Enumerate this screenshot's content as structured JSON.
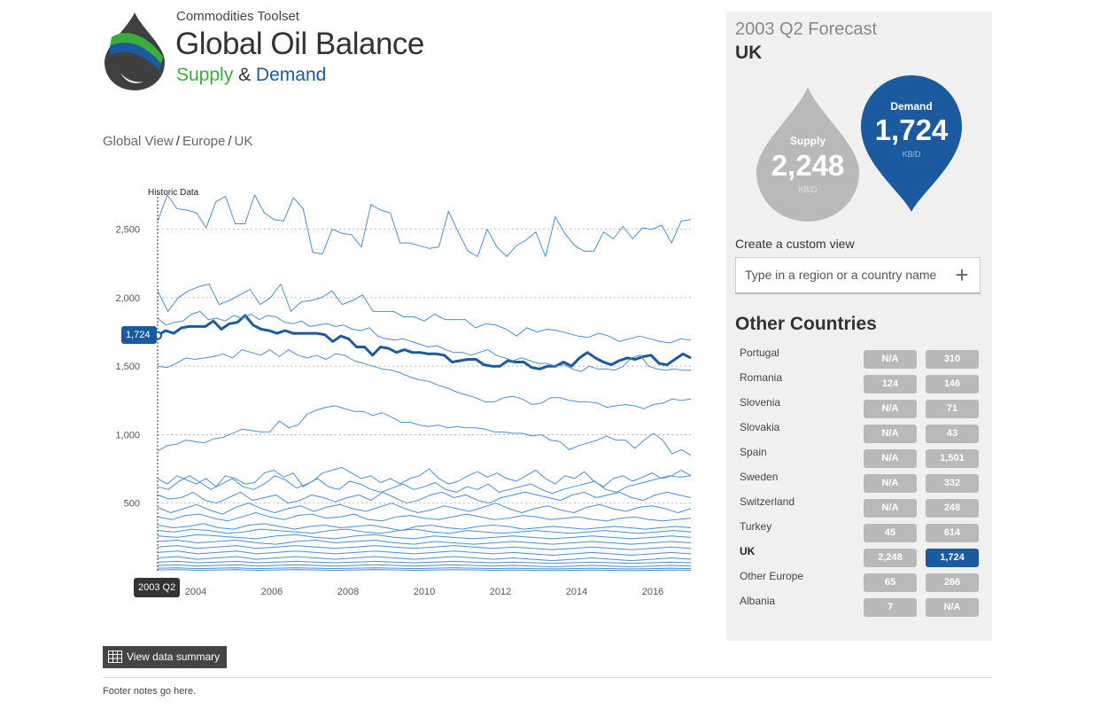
{
  "header": {
    "subtitle": "Commodities Toolset",
    "title": "Global Oil Balance",
    "tag_supply": "Supply",
    "tag_amp": "&",
    "tag_demand": "Demand",
    "logo_icon": "oil-drop-logo-icon"
  },
  "breadcrumb": {
    "items": [
      "Global View",
      "Europe",
      "UK"
    ],
    "separator": "/"
  },
  "chart_data": {
    "type": "line",
    "marker_label": "Historic Data",
    "selected_value_label": "1,724",
    "selected_date_label": "2003 Q2",
    "y_ticks": [
      "500",
      "1,000",
      "1,500",
      "2,000",
      "2,500"
    ],
    "x_ticks": [
      "2004",
      "2006",
      "2008",
      "2010",
      "2012",
      "2014",
      "2016"
    ],
    "ylim": [
      0,
      2750
    ],
    "xlim": [
      2003.0,
      2017.0
    ],
    "grid": true,
    "highlight_color": "#1c5aa0",
    "series_color": "#4a8fd4",
    "series": [
      {
        "values": [
          2560,
          2750,
          2650,
          2640,
          2620,
          2510,
          2700,
          2740,
          2540,
          2540,
          2750,
          2620,
          2570,
          2560,
          2730,
          2650,
          2330,
          2320,
          2500,
          2470,
          2460,
          2370,
          2680,
          2640,
          2620,
          2400,
          2400,
          2380,
          2360,
          2370,
          2630,
          2480,
          2340,
          2300,
          2500,
          2370,
          2300,
          2380,
          2420,
          2480,
          2300,
          2590,
          2470,
          2380,
          2340,
          2340,
          2480,
          2430,
          2520,
          2430,
          2510,
          2500,
          2530,
          2400,
          2560,
          2570
        ]
      },
      {
        "highlight": true,
        "name": "UK",
        "values": [
          1724,
          1760,
          1740,
          1780,
          1790,
          1790,
          1790,
          1830,
          1770,
          1810,
          1820,
          1870,
          1800,
          1770,
          1760,
          1740,
          1760,
          1740,
          1740,
          1740,
          1740,
          1730,
          1680,
          1720,
          1700,
          1640,
          1640,
          1580,
          1640,
          1630,
          1600,
          1620,
          1600,
          1600,
          1590,
          1590,
          1580,
          1530,
          1540,
          1550,
          1550,
          1510,
          1500,
          1500,
          1540,
          1530,
          1530,
          1490,
          1480,
          1500,
          1500,
          1530,
          1500,
          1560,
          1600,
          1560,
          1530,
          1510,
          1540,
          1560,
          1550,
          1570,
          1580,
          1520,
          1510,
          1550,
          1590,
          1560
        ]
      },
      {
        "values": [
          2050,
          1900,
          2000,
          2050,
          2080,
          2100,
          1950,
          1980,
          2020,
          2060,
          1950,
          2000,
          2100,
          1900,
          1970,
          1980,
          2000,
          2050,
          1950,
          1980,
          2020,
          1900,
          1900,
          1900,
          1860,
          1860,
          1830,
          1880,
          1840,
          1840,
          1840,
          1780,
          1810,
          1800,
          1770,
          1720,
          1780,
          1750,
          1770,
          1760,
          1740,
          1720,
          1710,
          1740,
          1720,
          1680,
          1700,
          1720,
          1700,
          1680,
          1670,
          1700,
          1690
        ]
      },
      {
        "values": [
          1850,
          1800,
          1820,
          1830,
          1880,
          1900,
          1840,
          1850,
          1830,
          1870,
          1850,
          1880,
          1840,
          1870,
          1860,
          1820,
          1810,
          1830,
          1790,
          1800,
          1810,
          1790,
          1800,
          1770,
          1760,
          1780,
          1720,
          1700,
          1690,
          1700,
          1680,
          1660,
          1640,
          1650,
          1620,
          1600,
          1600,
          1580,
          1600,
          1620,
          1580,
          1560,
          1540,
          1560,
          1540,
          1520,
          1520,
          1500,
          1510,
          1480,
          1460,
          1500,
          1480,
          1480,
          1470,
          1500,
          1560,
          1580,
          1500,
          1480,
          1470,
          1480,
          1470,
          1470
        ]
      },
      {
        "values": [
          1500,
          1490,
          1520,
          1560,
          1550,
          1560,
          1570,
          1590,
          1560,
          1620,
          1600,
          1580,
          1620,
          1570,
          1620,
          1580,
          1560,
          1580,
          1550,
          1590,
          1580,
          1540,
          1520,
          1500,
          1480,
          1470,
          1450,
          1420,
          1400,
          1390,
          1360,
          1340,
          1310,
          1290,
          1270,
          1240,
          1240,
          1270,
          1280,
          1260,
          1220,
          1230,
          1270,
          1270,
          1250,
          1240,
          1240,
          1230,
          1200,
          1210,
          1220,
          1210,
          1190,
          1220,
          1230,
          1260,
          1250,
          1260
        ]
      },
      {
        "values": [
          880,
          920,
          930,
          960,
          950,
          940,
          970,
          980,
          1010,
          1040,
          1030,
          1020,
          1020,
          1100,
          1050,
          1070,
          1150,
          1180,
          1200,
          1210,
          1190,
          1170,
          1170,
          1140,
          1160,
          1130,
          1090,
          1090,
          1070,
          1060,
          1070,
          1050,
          1060,
          1050,
          1050,
          1040,
          1020,
          1020,
          1010,
          1010,
          990,
          1000,
          960,
          950,
          890,
          920,
          940,
          960,
          990,
          960,
          960,
          900,
          960,
          1010,
          960,
          860,
          890,
          850
        ]
      },
      {
        "values": [
          680,
          640,
          700,
          670,
          640,
          680,
          620,
          700,
          680,
          640,
          650,
          720,
          740,
          690,
          720,
          620,
          660,
          720,
          740,
          760,
          720,
          680,
          700,
          650,
          680,
          640,
          680,
          700,
          750,
          680,
          640,
          660,
          700,
          730,
          690,
          720,
          680,
          660,
          700,
          740,
          680,
          640,
          700,
          680,
          730,
          660,
          620,
          680,
          700,
          660,
          690,
          720,
          680,
          700,
          740,
          700
        ]
      },
      {
        "values": [
          620,
          600,
          660,
          700,
          650,
          600,
          640,
          680,
          620,
          600,
          640,
          700,
          670,
          610,
          640,
          680,
          620,
          600,
          660,
          640,
          600,
          580,
          610,
          640,
          600,
          620,
          650,
          600,
          580,
          620,
          600,
          640,
          580,
          600,
          620,
          640,
          600,
          570,
          600,
          620,
          640,
          660,
          600,
          580,
          620,
          640,
          660,
          680,
          700,
          690,
          700
        ]
      },
      {
        "values": [
          560,
          530,
          540,
          580,
          520,
          500,
          540,
          580,
          520,
          540,
          560,
          500,
          520,
          560,
          540,
          510,
          540,
          560,
          520,
          580,
          540,
          500,
          520,
          560,
          580,
          540,
          560,
          520,
          500,
          540,
          560,
          580,
          560,
          540,
          520,
          560,
          580,
          540,
          560,
          580,
          540,
          520,
          560,
          580,
          560,
          540
        ]
      },
      {
        "values": [
          470,
          430,
          460,
          490,
          450,
          420,
          470,
          500,
          460,
          430,
          460,
          480,
          440,
          470,
          490,
          460,
          440,
          470,
          500,
          460,
          430,
          450,
          480,
          460,
          440,
          470,
          500,
          460,
          430,
          460,
          480,
          450,
          430,
          470,
          490,
          460,
          440,
          470,
          480,
          460,
          430,
          460
        ]
      },
      {
        "values": [
          400,
          380,
          410,
          420,
          390,
          370,
          400,
          430,
          400,
          380,
          410,
          420,
          390,
          400,
          420,
          380,
          370,
          400,
          410,
          390,
          380,
          400,
          420,
          400,
          380,
          390,
          410,
          400,
          380,
          390,
          400,
          380,
          370,
          390,
          400,
          380,
          370,
          380,
          390
        ]
      },
      {
        "values": [
          340,
          320,
          330,
          350,
          320,
          310,
          340,
          350,
          330,
          310,
          330,
          340,
          320,
          330,
          340,
          320,
          300,
          330,
          340,
          320,
          310,
          330,
          340,
          330,
          310,
          320,
          330,
          320,
          310,
          320,
          330,
          320,
          310,
          320,
          330,
          320
        ]
      },
      {
        "values": [
          300,
          290,
          310,
          300,
          280,
          290,
          310,
          300,
          290,
          280,
          300,
          310,
          290,
          280,
          300,
          310,
          290,
          280,
          300,
          290,
          280,
          290,
          300,
          290,
          280,
          290,
          300,
          290,
          280,
          290,
          300,
          290
        ]
      },
      {
        "values": [
          260,
          250,
          270,
          260,
          250,
          240,
          260,
          270,
          250,
          240,
          260,
          270,
          250,
          240,
          260,
          250,
          240,
          250,
          260,
          250,
          240,
          250,
          260,
          250,
          240,
          250,
          260,
          250
        ]
      },
      {
        "values": [
          220,
          230,
          210,
          220,
          230,
          210,
          200,
          220,
          230,
          210,
          220,
          230,
          210,
          200,
          220,
          210,
          200,
          210,
          220,
          210,
          200,
          210,
          220,
          210,
          200,
          210,
          220,
          210
        ]
      },
      {
        "values": [
          180,
          190,
          170,
          180,
          190,
          170,
          180,
          190,
          180,
          170,
          180,
          190,
          180,
          170,
          180,
          190,
          180,
          170,
          180,
          170,
          160,
          170,
          180,
          170,
          160,
          170,
          180,
          170
        ]
      },
      {
        "values": [
          140,
          150,
          130,
          140,
          150,
          130,
          140,
          150,
          140,
          130,
          140,
          150,
          140,
          130,
          140,
          150,
          140,
          130,
          140,
          130,
          120,
          130,
          140,
          130,
          120,
          130,
          140,
          130
        ]
      },
      {
        "values": [
          100,
          110,
          90,
          100,
          110,
          90,
          100,
          110,
          100,
          90,
          100,
          110,
          100,
          90,
          100,
          110,
          100,
          90,
          100,
          90,
          80,
          90,
          100,
          90,
          80,
          90,
          100,
          90
        ]
      },
      {
        "values": [
          70,
          75,
          65,
          70,
          75,
          65,
          70,
          75,
          70,
          65,
          70,
          75,
          70,
          65,
          70,
          75,
          70,
          65,
          70,
          65,
          60,
          65,
          70,
          65,
          60,
          65,
          70,
          65
        ]
      },
      {
        "values": [
          45,
          50,
          40,
          45,
          50,
          40,
          45,
          50,
          45,
          40,
          45,
          50,
          45,
          40,
          45,
          50,
          45,
          40,
          45,
          40,
          35,
          40,
          45,
          40,
          35,
          40,
          45,
          40
        ]
      },
      {
        "values": [
          25,
          28,
          22,
          25,
          28,
          22,
          25,
          28,
          25,
          22,
          25,
          28,
          25,
          22,
          25,
          28,
          25,
          22,
          25,
          22,
          20,
          22,
          25,
          22,
          20,
          22,
          25,
          22
        ]
      },
      {
        "values": [
          12,
          14,
          10,
          12,
          14,
          10,
          12,
          14,
          12,
          10,
          12,
          14,
          12,
          10,
          12,
          14,
          12,
          10,
          12,
          10,
          8,
          10,
          12,
          10,
          8,
          10,
          12,
          10
        ]
      }
    ]
  },
  "panel": {
    "forecast_title": "2003 Q2 Forecast",
    "region": "UK",
    "supply": {
      "label": "Supply",
      "value": "2,248",
      "unit": "KB/D",
      "color": "#b9b9b9"
    },
    "demand": {
      "label": "Demand",
      "value": "1,724",
      "unit": "KB/D",
      "color": "#1c5aa0"
    },
    "custom_view_label": "Create a custom view",
    "search_placeholder": "Type in a region or a country name",
    "add_icon": "plus-icon",
    "other_title": "Other Countries",
    "countries": [
      {
        "name": "Portugal",
        "supply": "N/A",
        "demand": "310"
      },
      {
        "name": "Romania",
        "supply": "124",
        "demand": "146"
      },
      {
        "name": "Slovenia",
        "supply": "N/A",
        "demand": "71"
      },
      {
        "name": "Slovakia",
        "supply": "N/A",
        "demand": "43"
      },
      {
        "name": "Spain",
        "supply": "N/A",
        "demand": "1,501"
      },
      {
        "name": "Sweden",
        "supply": "N/A",
        "demand": "332"
      },
      {
        "name": "Switzerland",
        "supply": "N/A",
        "demand": "248"
      },
      {
        "name": "Turkey",
        "supply": "45",
        "demand": "614"
      },
      {
        "name": "UK",
        "supply": "2,248",
        "demand": "1,724",
        "active": true
      },
      {
        "name": "Other Europe",
        "supply": "65",
        "demand": "266"
      },
      {
        "name": "Albania",
        "supply": "7",
        "demand": "N/A"
      }
    ]
  },
  "footer": {
    "summary_button": "View data summary",
    "summary_icon": "table-icon",
    "note": "Footer notes go here."
  }
}
